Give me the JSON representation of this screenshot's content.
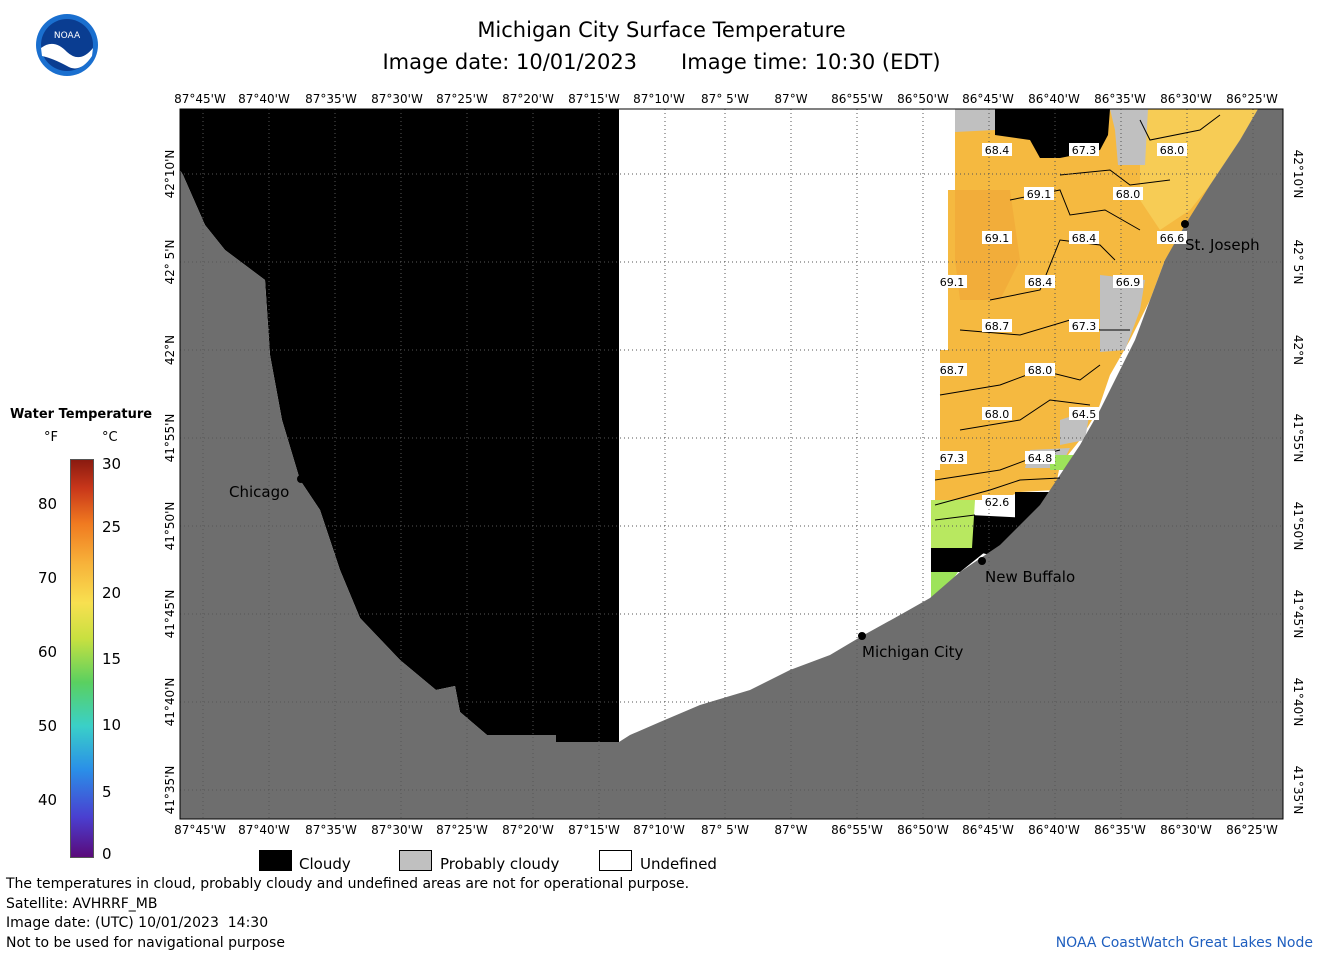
{
  "header": {
    "title": "Michigan City Surface Temperature",
    "image_date": "Image date: 10/01/2023",
    "image_time": "Image time: 10:30 (EDT)"
  },
  "map": {
    "lon_labels": [
      "87°45'W",
      "87°40'W",
      "87°35'W",
      "87°30'W",
      "87°25'W",
      "87°20'W",
      "87°15'W",
      "87°10'W",
      "87° 5'W",
      "87°W",
      "86°55'W",
      "86°50'W",
      "86°45'W",
      "86°40'W",
      "86°35'W",
      "86°30'W",
      "86°25'W"
    ],
    "lat_labels": [
      "42°10'N",
      "42° 5'N",
      "42°N",
      "41°55'N",
      "41°50'N",
      "41°45'N",
      "41°40'N",
      "41°35'N"
    ],
    "cities": [
      "Chicago",
      "Michigan City",
      "New Buffalo",
      "St. Joseph"
    ],
    "isotherm_labels": [
      "68.4",
      "67.3",
      "68.0",
      "69.1",
      "68.0",
      "69.1",
      "68.4",
      "66.6",
      "69.1",
      "68.4",
      "66.9",
      "68.7",
      "67.3",
      "68.7",
      "68.0",
      "68.0",
      "64.5",
      "67.3",
      "64.8",
      "62.6"
    ],
    "colors": {
      "land": "#6e6e6e",
      "cloudy": "#000000",
      "probably_cloudy": "#c0c0c0",
      "undefined": "#ffffff",
      "warm_water": "#f7b840",
      "cool_water": "#9de35a"
    }
  },
  "scale": {
    "title": "Water Temperature",
    "unit_f": "°F",
    "unit_c": "°C",
    "f_ticks": [
      "80",
      "70",
      "60",
      "50",
      "40"
    ],
    "c_ticks": [
      "30",
      "25",
      "20",
      "15",
      "10",
      "5",
      "0"
    ]
  },
  "key": {
    "cloudy": "Cloudy",
    "probably_cloudy": "Probably cloudy",
    "undefined": "Undefined"
  },
  "footer": {
    "line1": "The temperatures in cloud, probably cloudy and undefined areas are not for operational purpose.",
    "line2": "Satellite: AVHRRF_MB",
    "line3": "Image date: (UTC) 10/01/2023  14:30",
    "line4": "Not to be used for navigational purpose",
    "credit": "NOAA CoastWatch Great Lakes Node"
  },
  "logo": {
    "text": "NOAA"
  }
}
